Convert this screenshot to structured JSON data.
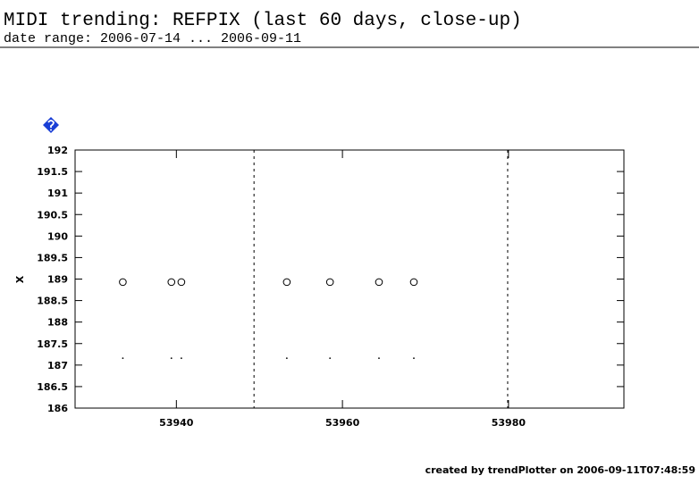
{
  "header": {
    "title": "MIDI trending: REFPIX (last 60 days, close-up)",
    "subtitle": "date range: 2006-07-14 ... 2006-09-11"
  },
  "chart_data": {
    "type": "scatter",
    "ylabel": "X",
    "x": [
      53933.55,
      53939.4,
      53940.6,
      53953.3,
      53958.5,
      53964.4,
      53968.6
    ],
    "series": [
      {
        "marker": "circle",
        "color": "#000000",
        "values": [
          188.93,
          188.93,
          188.93,
          188.93,
          188.93,
          188.93,
          188.93
        ]
      },
      {
        "marker": "dot",
        "color": "#000000",
        "values": [
          187.16,
          187.16,
          187.16,
          187.16,
          187.16,
          187.16,
          187.16
        ]
      }
    ],
    "vlines": [
      53949.35,
      53979.9
    ],
    "xlim": [
      53927.8,
      53993.9
    ],
    "xticks": [
      53940,
      53960,
      53980
    ],
    "ylim": [
      186,
      192
    ],
    "yticks": [
      186,
      186.5,
      187,
      187.5,
      188,
      188.5,
      189,
      189.5,
      190,
      190.5,
      191,
      191.5,
      192
    ]
  },
  "footer": "created by trendPlotter on 2006-09-11T07:48:59"
}
